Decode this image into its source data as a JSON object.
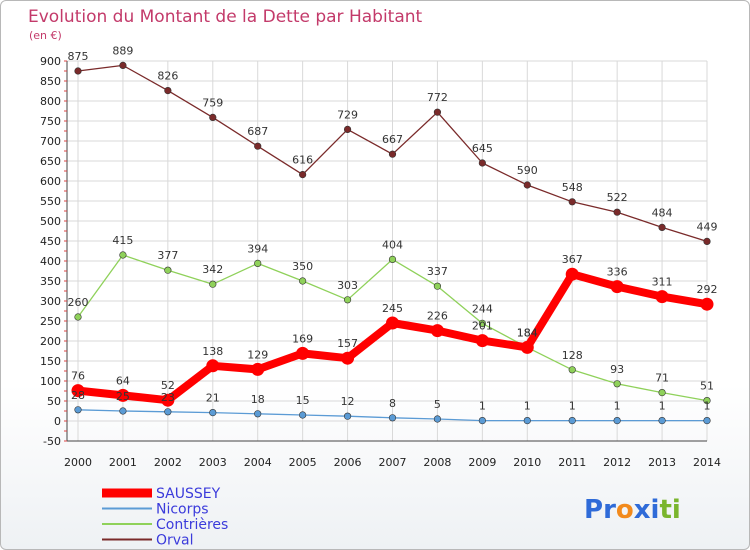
{
  "header": {
    "title": "Evolution du Montant de la Dette par Habitant",
    "unit": "(en €)"
  },
  "logo": {
    "letters": [
      "P",
      "r",
      "o",
      "x",
      "i",
      "t",
      "i"
    ]
  },
  "colors": {
    "title": "#c33a6a",
    "grid": "#d9d9d9",
    "logo": [
      "#2f6bd8",
      "#2f6bd8",
      "#f28a1c",
      "#2f6bd8",
      "#2f6bd8",
      "#7ab52d",
      "#7ab52d"
    ]
  },
  "chart_data": {
    "type": "line",
    "title": "Evolution du Montant de la Dette par Habitant",
    "ylabel": "(en €)",
    "xlabel": "",
    "x": [
      "2000",
      "2001",
      "2002",
      "2003",
      "2004",
      "2005",
      "2006",
      "2007",
      "2008",
      "2009",
      "2010",
      "2011",
      "2012",
      "2013",
      "2014"
    ],
    "ylim": [
      -50,
      900
    ],
    "ytick_step": 50,
    "grid": true,
    "legend_position": "bottom-left",
    "series": [
      {
        "name": "SAUSSEY",
        "color": "#ff0000",
        "emphasis": true,
        "values": [
          76,
          64,
          52,
          138,
          129,
          169,
          157,
          245,
          226,
          201,
          184,
          367,
          336,
          311,
          292
        ]
      },
      {
        "name": "Nicorps",
        "color": "#5b9bd5",
        "values": [
          28,
          25,
          23,
          21,
          18,
          15,
          12,
          8,
          5,
          1,
          1,
          1,
          1,
          1,
          1
        ]
      },
      {
        "name": "Contrières",
        "color": "#8fd15a",
        "values": [
          260,
          415,
          377,
          342,
          394,
          350,
          303,
          404,
          337,
          244,
          184,
          128,
          93,
          71,
          51
        ]
      },
      {
        "name": "Orval",
        "color": "#7a2a2a",
        "values": [
          875,
          889,
          826,
          759,
          687,
          616,
          729,
          667,
          772,
          645,
          590,
          548,
          522,
          484,
          449
        ]
      }
    ]
  }
}
